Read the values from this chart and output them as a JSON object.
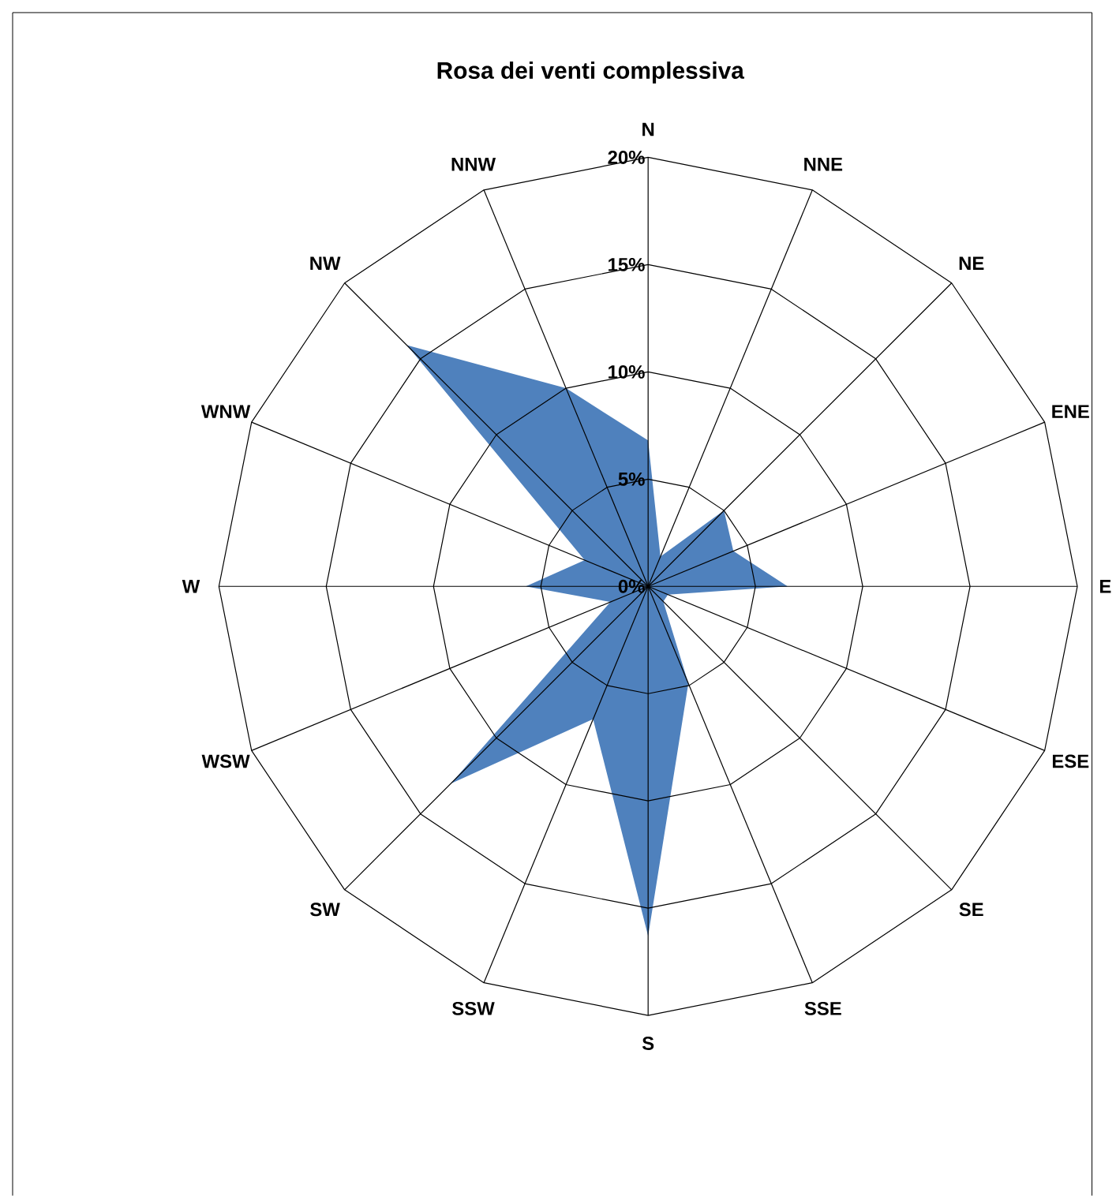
{
  "chart_data": {
    "type": "radar",
    "title": "Rosa dei venti complessiva",
    "categories": [
      "N",
      "NNE",
      "NE",
      "ENE",
      "E",
      "ESE",
      "SE",
      "SSE",
      "S",
      "SSW",
      "SW",
      "WSW",
      "W",
      "WNW",
      "NW",
      "NNW"
    ],
    "series": [
      {
        "color": "#4f81bd",
        "values": [
          6.8,
          1.5,
          5,
          4.3,
          6.5,
          1,
          1,
          4.9,
          16.3,
          6.7,
          13,
          1.9,
          5.7,
          3.2,
          15.9,
          10
        ]
      }
    ],
    "ylim": [
      0,
      20
    ],
    "yticks": [
      {
        "value": 0,
        "label": "0%"
      },
      {
        "value": 5,
        "label": "5%"
      },
      {
        "value": 10,
        "label": "10%"
      },
      {
        "value": 15,
        "label": "15%"
      },
      {
        "value": 20,
        "label": "20%"
      }
    ],
    "grid": true
  }
}
